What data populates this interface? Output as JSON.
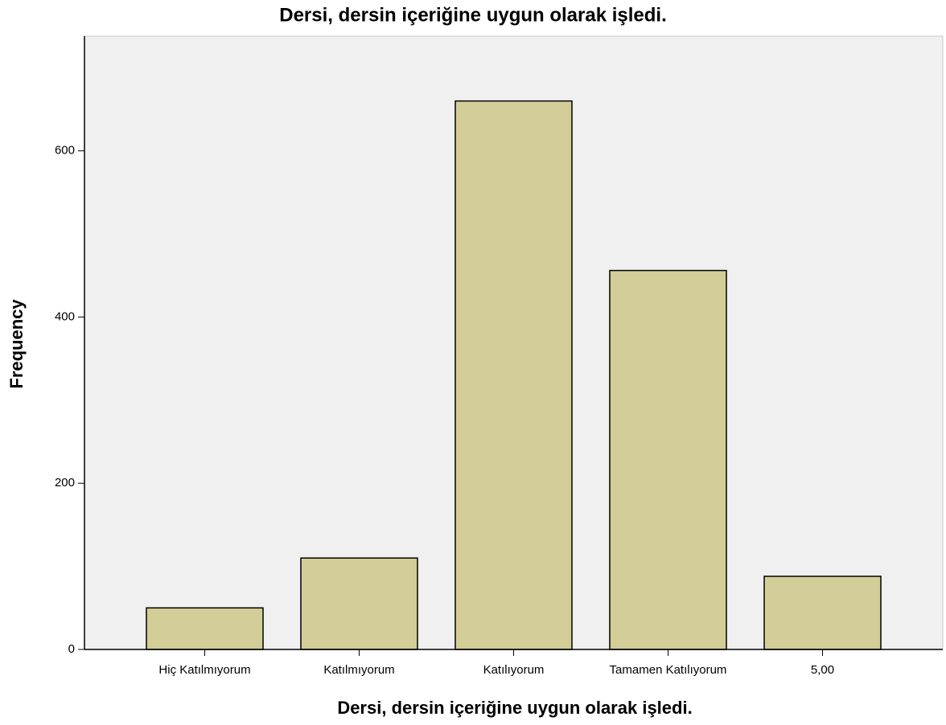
{
  "chart_data": {
    "type": "bar",
    "title": "Dersi, dersin içeriğine uygun olarak işledi.",
    "x_label": "Dersi, dersin içeriğine uygun olarak işledi.",
    "y_label": "Frequency",
    "categories": [
      "Hiç Katılmıyorum",
      "Katılmıyorum",
      "Katılıyorum",
      "Tamamen Katılıyorum",
      "5,00"
    ],
    "values": [
      50,
      110,
      660,
      456,
      88
    ],
    "color": "#d3ce97",
    "ylim": [
      0,
      738
    ],
    "yticks": [
      0,
      200,
      400,
      600
    ],
    "grid": false
  }
}
